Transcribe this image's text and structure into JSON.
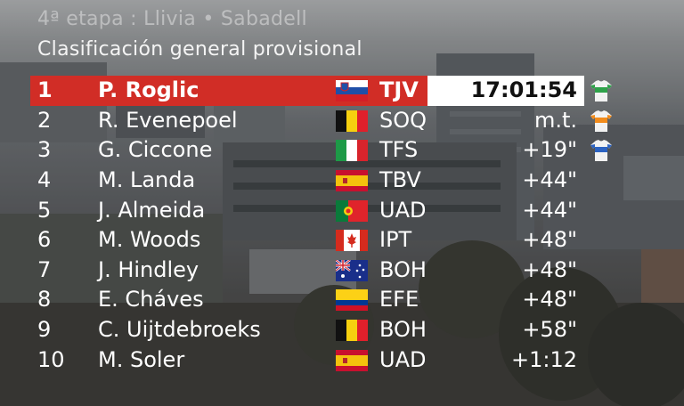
{
  "overlay": {
    "stage": "4ª etapa : Llivia • Sabadell",
    "subtitle": "Clasificación general provisional"
  },
  "standings": [
    {
      "pos": "1",
      "name": "P. Roglic",
      "team": "TJV",
      "time": "17:01:54",
      "flag": "slovenia-flag",
      "jersey": "white-green-jersey"
    },
    {
      "pos": "2",
      "name": "R. Evenepoel",
      "team": "SOQ",
      "time": "m.t.",
      "flag": "belgium-flag",
      "jersey": "white-orange-jersey"
    },
    {
      "pos": "3",
      "name": "G. Ciccone",
      "team": "TFS",
      "time": "+19\"",
      "flag": "italy-flag",
      "jersey": "white-blue-jersey"
    },
    {
      "pos": "4",
      "name": "M. Landa",
      "team": "TBV",
      "time": "+44\"",
      "flag": "spain-flag"
    },
    {
      "pos": "5",
      "name": "J. Almeida",
      "team": "UAD",
      "time": "+44\"",
      "flag": "portugal-flag"
    },
    {
      "pos": "6",
      "name": "M. Woods",
      "team": "IPT",
      "time": "+48\"",
      "flag": "canada-flag"
    },
    {
      "pos": "7",
      "name": "J. Hindley",
      "team": "BOH",
      "time": "+48\"",
      "flag": "australia-flag"
    },
    {
      "pos": "8",
      "name": "E. Cháves",
      "team": "EFE",
      "time": "+48\"",
      "flag": "colombia-flag"
    },
    {
      "pos": "9",
      "name": "C. Uijtdebroeks",
      "team": "BOH",
      "time": "+58\"",
      "flag": "belgium-flag"
    },
    {
      "pos": "10",
      "name": "M. Soler",
      "team": "UAD",
      "time": "+1:12",
      "flag": "spain-flag"
    }
  ],
  "colors": {
    "leader_bar": "#d12d26",
    "leader_time_box": "#ffffff",
    "text": "#ffffff"
  }
}
